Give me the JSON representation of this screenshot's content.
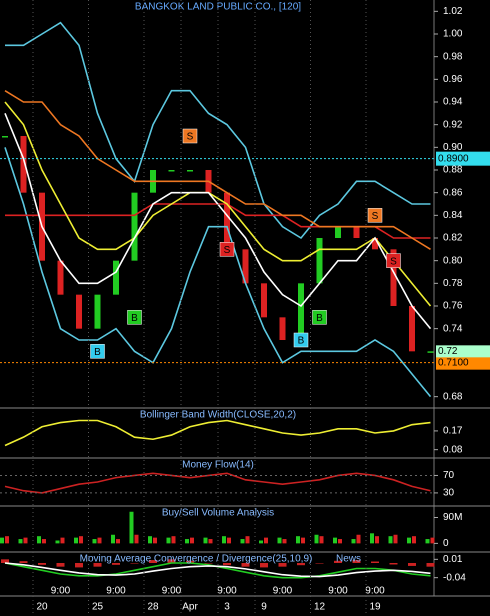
{
  "chart_data": [
    {
      "type": "stock",
      "title": "BANGKOK LAND PUBLIC CO., [120]",
      "title_color": "#66aaff",
      "ylim": [
        0.67,
        1.03
      ],
      "yticks": [
        1.02,
        {
          "value": 1,
          "label": "1.00"
        },
        0.98,
        0.96,
        0.94,
        0.92,
        {
          "value": 0.9,
          "label": "0.90"
        },
        0.88,
        0.86,
        0.84,
        0.82,
        {
          "value": 0.8,
          "label": "0.80"
        },
        0.78,
        0.76,
        0.74,
        0.68
      ],
      "close": {
        "color_up": "#22cc22",
        "color_down": "#dd2222",
        "values": [
          0.91,
          0.86,
          0.8,
          0.77,
          0.74,
          0.77,
          0.8,
          0.86,
          0.88,
          0.88,
          0.88,
          0.86,
          0.81,
          0.78,
          0.75,
          0.73,
          0.78,
          0.82,
          0.83,
          0.82,
          0.81,
          0.76,
          0.72,
          0.72
        ]
      },
      "series": [
        {
          "color": "#5cc8e0",
          "values": [
            0.99,
            0.99,
            1.0,
            1.01,
            0.99,
            0.93,
            0.89,
            0.87,
            0.92,
            0.95,
            0.95,
            0.93,
            0.92,
            0.9,
            0.85,
            0.83,
            0.82,
            0.84,
            0.85,
            0.87,
            0.87,
            0.86,
            0.85,
            0.85
          ]
        },
        {
          "color": "#5cc8e0",
          "values": [
            0.9,
            0.85,
            0.79,
            0.74,
            0.73,
            0.73,
            0.74,
            0.72,
            0.71,
            0.74,
            0.79,
            0.83,
            0.83,
            0.78,
            0.74,
            0.71,
            0.72,
            0.72,
            0.72,
            0.72,
            0.73,
            0.72,
            0.7,
            0.68
          ]
        },
        {
          "color": "#dd2222",
          "values": [
            0.84,
            0.84,
            0.84,
            0.84,
            0.84,
            0.84,
            0.84,
            0.84,
            0.85,
            0.85,
            0.85,
            0.85,
            0.85,
            0.84,
            0.84,
            0.84,
            0.83,
            0.83,
            0.83,
            0.83,
            0.83,
            0.82,
            0.82,
            0.82
          ]
        },
        {
          "color": "#ee7722",
          "values": [
            0.95,
            0.94,
            0.94,
            0.92,
            0.91,
            0.89,
            0.88,
            0.87,
            0.87,
            0.87,
            0.87,
            0.87,
            0.86,
            0.85,
            0.85,
            0.84,
            0.84,
            0.83,
            0.83,
            0.83,
            0.83,
            0.83,
            0.82,
            0.81
          ]
        },
        {
          "color": "#eeee33",
          "values": [
            0.94,
            0.92,
            0.88,
            0.85,
            0.82,
            0.81,
            0.81,
            0.82,
            0.84,
            0.85,
            0.86,
            0.86,
            0.85,
            0.83,
            0.81,
            0.8,
            0.8,
            0.81,
            0.81,
            0.81,
            0.82,
            0.8,
            0.78,
            0.76
          ]
        },
        {
          "color": "#ffffff",
          "values": [
            0.93,
            0.89,
            0.83,
            0.8,
            0.78,
            0.78,
            0.79,
            0.82,
            0.85,
            0.86,
            0.86,
            0.86,
            0.84,
            0.82,
            0.79,
            0.77,
            0.76,
            0.78,
            0.8,
            0.8,
            0.82,
            0.79,
            0.76,
            0.74
          ]
        }
      ],
      "hlines": [
        {
          "value": 0.89,
          "label": "0.8900",
          "color": "#33ddee"
        },
        {
          "value": 0.71,
          "label": "0.7100",
          "color": "#ff8800"
        }
      ],
      "last_price": {
        "value": 0.72,
        "color": "#aaffcc"
      },
      "signals": [
        {
          "label": "B",
          "x": 5,
          "value": 0.72,
          "color": "#33ccee"
        },
        {
          "label": "B",
          "x": 7,
          "value": 0.75,
          "color": "#22cc22"
        },
        {
          "label": "S",
          "x": 10,
          "value": 0.91,
          "color": "#ee7722"
        },
        {
          "label": "S",
          "x": 12,
          "value": 0.81,
          "color": "#dd2222"
        },
        {
          "label": "B",
          "x": 16,
          "value": 0.73,
          "color": "#33ccee"
        },
        {
          "label": "B",
          "x": 17,
          "value": 0.75,
          "color": "#22cc22"
        },
        {
          "label": "S",
          "x": 20,
          "value": 0.84,
          "color": "#ee7722"
        },
        {
          "label": "S",
          "x": 21,
          "value": 0.8,
          "color": "#dd2222"
        }
      ]
    },
    {
      "type": "line",
      "title": "Bollinger Band Width(CLOSE,20,2)",
      "title_color": "#88bbff",
      "ylim": [
        0.04,
        0.28
      ],
      "yticks": [
        0.17,
        0.08
      ],
      "series": [
        {
          "color": "#eeee33",
          "values": [
            0.1,
            0.14,
            0.19,
            0.21,
            0.22,
            0.22,
            0.19,
            0.14,
            0.13,
            0.15,
            0.19,
            0.21,
            0.22,
            0.2,
            0.18,
            0.16,
            0.15,
            0.16,
            0.18,
            0.18,
            0.16,
            0.17,
            0.2,
            0.21
          ]
        }
      ]
    },
    {
      "type": "line",
      "title": "Money Flow(14)",
      "title_color": "#88bbff",
      "grid": true,
      "ylim": [
        0,
        110
      ],
      "yticks": [
        70,
        30
      ],
      "series": [
        {
          "color": "#cc2222",
          "values": [
            45,
            35,
            30,
            40,
            50,
            55,
            65,
            70,
            75,
            70,
            65,
            70,
            75,
            60,
            55,
            50,
            55,
            60,
            70,
            75,
            70,
            60,
            45,
            35
          ]
        }
      ]
    },
    {
      "type": "bar",
      "title": "Buy/Sell Volume Analysis",
      "title_color": "#88bbff",
      "ylim": [
        -30000000,
        130000000
      ],
      "yticks": [
        {
          "value": 90000000,
          "label": "90M"
        },
        0
      ],
      "series": [
        {
          "color": "#22cc22",
          "values": [
            20000000,
            15000000,
            25000000,
            10000000,
            20000000,
            15000000,
            30000000,
            110000000,
            25000000,
            20000000,
            15000000,
            20000000,
            25000000,
            15000000,
            10000000,
            20000000,
            25000000,
            30000000,
            20000000,
            15000000,
            35000000,
            25000000,
            20000000,
            15000000
          ]
        },
        {
          "color": "#dd2222",
          "values": [
            25000000,
            20000000,
            15000000,
            20000000,
            25000000,
            20000000,
            15000000,
            30000000,
            20000000,
            25000000,
            20000000,
            15000000,
            20000000,
            25000000,
            20000000,
            15000000,
            20000000,
            25000000,
            15000000,
            30000000,
            25000000,
            30000000,
            25000000,
            20000000
          ]
        }
      ]
    },
    {
      "type": "macd",
      "title": "Moving Average Convergence / Divergence(25,10,9)",
      "annotation": "News",
      "title_color": "#88bbff",
      "ylim": [
        -0.09,
        0.03
      ],
      "yticks": [
        0.01,
        -0.04
      ],
      "histogram": {
        "color": "#cc2222",
        "values": [
          0.01,
          0.005,
          -0.005,
          -0.01,
          -0.012,
          -0.01,
          -0.005,
          0,
          0.008,
          0.01,
          0.006,
          0,
          -0.006,
          -0.01,
          -0.012,
          -0.01,
          -0.006,
          0,
          0.006,
          0.008,
          0.004,
          -0.004,
          -0.008,
          -0.01
        ]
      },
      "series": [
        {
          "color": "#22cc22",
          "values": [
            0,
            -0.01,
            -0.02,
            -0.03,
            -0.035,
            -0.035,
            -0.03,
            -0.02,
            -0.01,
            0,
            0,
            -0.005,
            -0.015,
            -0.025,
            -0.035,
            -0.04,
            -0.04,
            -0.035,
            -0.025,
            -0.015,
            -0.015,
            -0.02,
            -0.03,
            -0.035
          ]
        },
        {
          "color": "#ffffff",
          "values": [
            0,
            -0.005,
            -0.012,
            -0.02,
            -0.027,
            -0.032,
            -0.033,
            -0.03,
            -0.022,
            -0.015,
            -0.01,
            -0.008,
            -0.01,
            -0.016,
            -0.024,
            -0.032,
            -0.036,
            -0.037,
            -0.033,
            -0.026,
            -0.022,
            -0.02,
            -0.023,
            -0.028
          ]
        }
      ],
      "categories": [
        null,
        null,
        null,
        "9:00",
        null,
        null,
        "9:00",
        null,
        null,
        "9:00",
        null,
        null,
        "9:00",
        null,
        null,
        "9:00",
        null,
        null,
        "9:00",
        null,
        "9:00",
        null,
        null,
        null
      ],
      "day_labels": [
        null,
        null,
        "20",
        null,
        null,
        "25",
        null,
        null,
        "28",
        null,
        "Apr",
        null,
        "3",
        null,
        "9",
        null,
        null,
        "12",
        null,
        null,
        "19",
        null,
        null,
        null
      ]
    }
  ]
}
